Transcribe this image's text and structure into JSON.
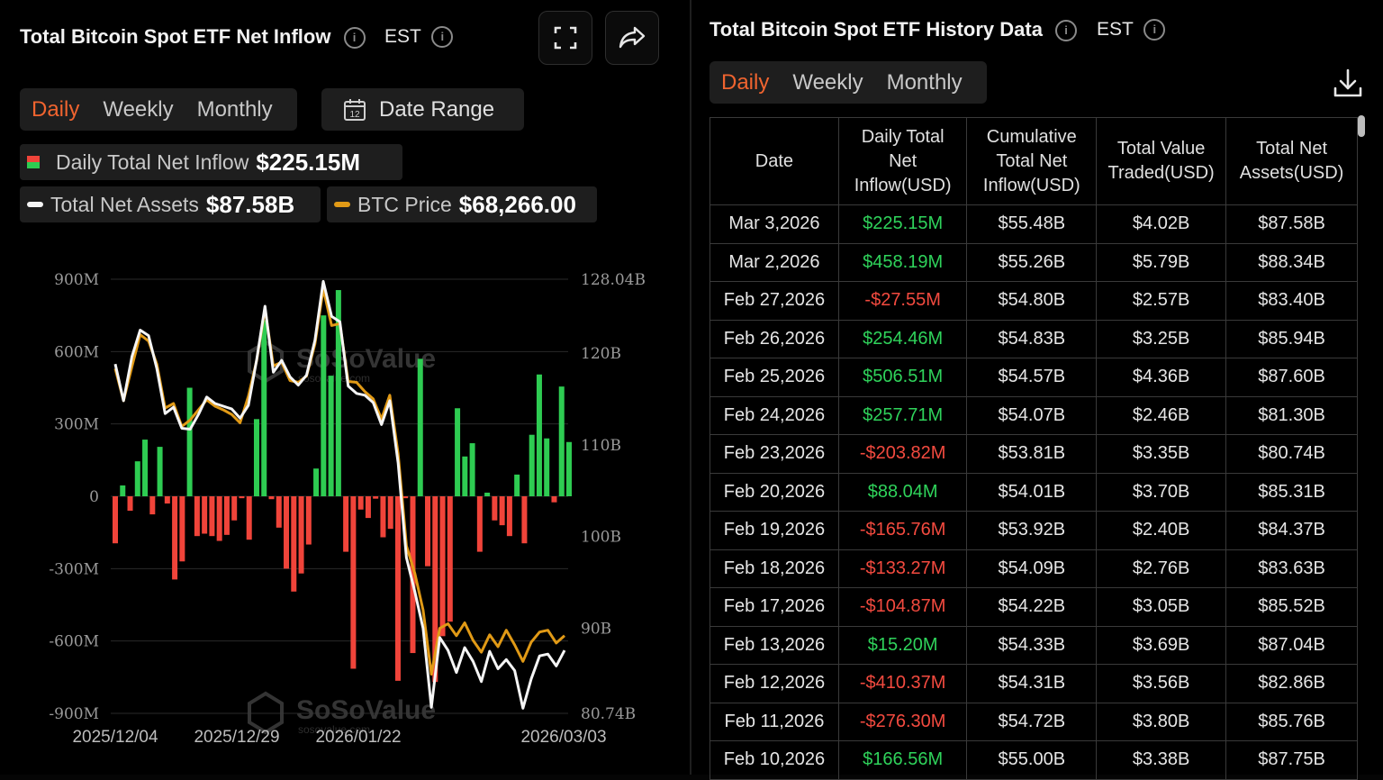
{
  "left": {
    "title": "Total Bitcoin Spot ETF Net Inflow",
    "timezone": "EST",
    "tabs": [
      "Daily",
      "Weekly",
      "Monthly"
    ],
    "active_tab": "Daily",
    "date_range_label": "Date Range",
    "legend": {
      "inflow_label": "Daily Total Net Inflow",
      "inflow_value": "$225.15M",
      "assets_label": "Total Net Assets",
      "assets_value": "$87.58B",
      "btc_label": "BTC Price",
      "btc_value": "$68,266.00"
    },
    "watermark": "SoSoValue",
    "watermark_sub": "sosovalue.com"
  },
  "chart_data": {
    "type": "bar",
    "title": "Total Bitcoin Spot ETF Net Inflow",
    "x_tick_labels": [
      "2025/12/04",
      "2025/12/29",
      "2026/01/22",
      "2026/03/03"
    ],
    "y_left_ticks": [
      "900M",
      "600M",
      "300M",
      "0",
      "-300M",
      "-600M",
      "-900M"
    ],
    "y_left_range_millions": [
      -900,
      900
    ],
    "y_right_ticks": [
      "128.04B",
      "120B",
      "110B",
      "100B",
      "90B",
      "80.74B"
    ],
    "y_right_range_billions": [
      80.74,
      128.04
    ],
    "grid": true,
    "series": [
      {
        "name": "Daily Total Net Inflow",
        "unit": "M USD",
        "values": [
          -195,
          45,
          -60,
          145,
          235,
          -75,
          205,
          -30,
          -345,
          -270,
          450,
          -165,
          -155,
          -165,
          -185,
          -160,
          -100,
          -8,
          -180,
          320,
          730,
          -12,
          -130,
          -300,
          -395,
          -320,
          -200,
          115,
          750,
          500,
          855,
          -230,
          -715,
          -55,
          -90,
          -10,
          -170,
          -135,
          -765,
          -8,
          -650,
          570,
          -290,
          -770,
          -580,
          -520,
          365,
          165,
          220,
          -230,
          15,
          -100,
          -120,
          -165,
          90,
          -195,
          255,
          505,
          240,
          -25,
          455,
          225
        ],
        "colors": {
          "positive": "#2ecc52",
          "negative": "#f0443a"
        }
      },
      {
        "name": "Total Net Assets",
        "unit": "B USD",
        "values": [
          118.8,
          114.8,
          119.6,
          122.5,
          121.9,
          118.3,
          113.4,
          114.1,
          111.8,
          111.7,
          113.3,
          115.2,
          114.5,
          114.2,
          113.9,
          112.9,
          114.3,
          119.3,
          125.1,
          117.9,
          119.2,
          117.4,
          116.5,
          117.6,
          121.4,
          127.8,
          124.0,
          123.4,
          116.4,
          115.6,
          115.4,
          114.6,
          112.2,
          114.8,
          108.0,
          97.7,
          94.0,
          90.0,
          81.4,
          89.0,
          87.6,
          85.2,
          87.9,
          86.4,
          84.2,
          87.5,
          85.6,
          86.6,
          85.4,
          81.3,
          84.5,
          87.0,
          87.2,
          85.9,
          87.6
        ],
        "color": "#f5f5f5"
      },
      {
        "name": "BTC Price",
        "unit": "axis B",
        "values": [
          118.3,
          114.8,
          118.5,
          122.0,
          121.3,
          118.8,
          114.0,
          114.5,
          112.0,
          112.7,
          113.8,
          114.9,
          114.2,
          113.8,
          113.3,
          112.4,
          115.3,
          119.2,
          124.8,
          118.6,
          119.0,
          117.0,
          116.8,
          117.5,
          121.0,
          127.0,
          123.0,
          123.2,
          116.9,
          116.8,
          115.8,
          115.0,
          112.8,
          115.4,
          109.0,
          99.0,
          96.0,
          92.0,
          85.0,
          90.0,
          90.5,
          89.2,
          90.6,
          88.7,
          87.4,
          89.3,
          88.0,
          89.8,
          88.2,
          86.4,
          88.5,
          89.6,
          89.8,
          88.4,
          89.2
        ],
        "color": "#e19a16"
      }
    ]
  },
  "right": {
    "title": "Total Bitcoin Spot ETF History Data",
    "timezone": "EST",
    "tabs": [
      "Daily",
      "Weekly",
      "Monthly"
    ],
    "active_tab": "Daily",
    "table": {
      "headers": [
        "Date",
        "Daily Total Net Inflow(USD)",
        "Cumulative Total Net Inflow(USD)",
        "Total Value Traded(USD)",
        "Total Net Assets(USD)"
      ],
      "header_lines": [
        [
          "Date"
        ],
        [
          "Daily Total",
          "Net",
          "Inflow(USD)"
        ],
        [
          "Cumulative",
          "Total Net",
          "Inflow(USD)"
        ],
        [
          "Total Value",
          "Traded(USD)"
        ],
        [
          "Total Net",
          "Assets(USD)"
        ]
      ],
      "rows": [
        [
          "Mar 3,2026",
          "$225.15M",
          "$55.48B",
          "$4.02B",
          "$87.58B"
        ],
        [
          "Mar 2,2026",
          "$458.19M",
          "$55.26B",
          "$5.79B",
          "$88.34B"
        ],
        [
          "Feb 27,2026",
          "-$27.55M",
          "$54.80B",
          "$2.57B",
          "$83.40B"
        ],
        [
          "Feb 26,2026",
          "$254.46M",
          "$54.83B",
          "$3.25B",
          "$85.94B"
        ],
        [
          "Feb 25,2026",
          "$506.51M",
          "$54.57B",
          "$4.36B",
          "$87.60B"
        ],
        [
          "Feb 24,2026",
          "$257.71M",
          "$54.07B",
          "$2.46B",
          "$81.30B"
        ],
        [
          "Feb 23,2026",
          "-$203.82M",
          "$53.81B",
          "$3.35B",
          "$80.74B"
        ],
        [
          "Feb 20,2026",
          "$88.04M",
          "$54.01B",
          "$3.70B",
          "$85.31B"
        ],
        [
          "Feb 19,2026",
          "-$165.76M",
          "$53.92B",
          "$2.40B",
          "$84.37B"
        ],
        [
          "Feb 18,2026",
          "-$133.27M",
          "$54.09B",
          "$2.76B",
          "$83.63B"
        ],
        [
          "Feb 17,2026",
          "-$104.87M",
          "$54.22B",
          "$3.05B",
          "$85.52B"
        ],
        [
          "Feb 13,2026",
          "$15.20M",
          "$54.33B",
          "$3.69B",
          "$87.04B"
        ],
        [
          "Feb 12,2026",
          "-$410.37M",
          "$54.31B",
          "$3.56B",
          "$82.86B"
        ],
        [
          "Feb 11,2026",
          "-$276.30M",
          "$54.72B",
          "$3.80B",
          "$85.76B"
        ],
        [
          "Feb 10,2026",
          "$166.56M",
          "$55.00B",
          "$3.38B",
          "$87.75B"
        ]
      ]
    }
  }
}
